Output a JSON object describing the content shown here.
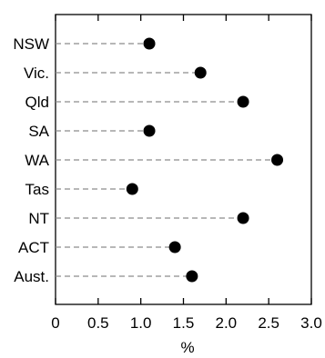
{
  "chart_data": {
    "type": "dot",
    "categories": [
      "NSW",
      "Vic.",
      "Qld",
      "SA",
      "WA",
      "Tas",
      "NT",
      "ACT",
      "Aust."
    ],
    "values": [
      1.1,
      1.7,
      2.2,
      1.1,
      2.6,
      0.9,
      2.2,
      1.4,
      1.6
    ],
    "xlim": [
      0,
      3.0
    ],
    "xticks": [
      "0",
      "0.5",
      "1.0",
      "1.5",
      "2.0",
      "2.5",
      "3.0"
    ],
    "xlabel": "%",
    "ylabel": "",
    "title": "",
    "grid": false,
    "legend": "none",
    "marker_color": "#000000",
    "leader_line_color": "#8c8c8c"
  }
}
